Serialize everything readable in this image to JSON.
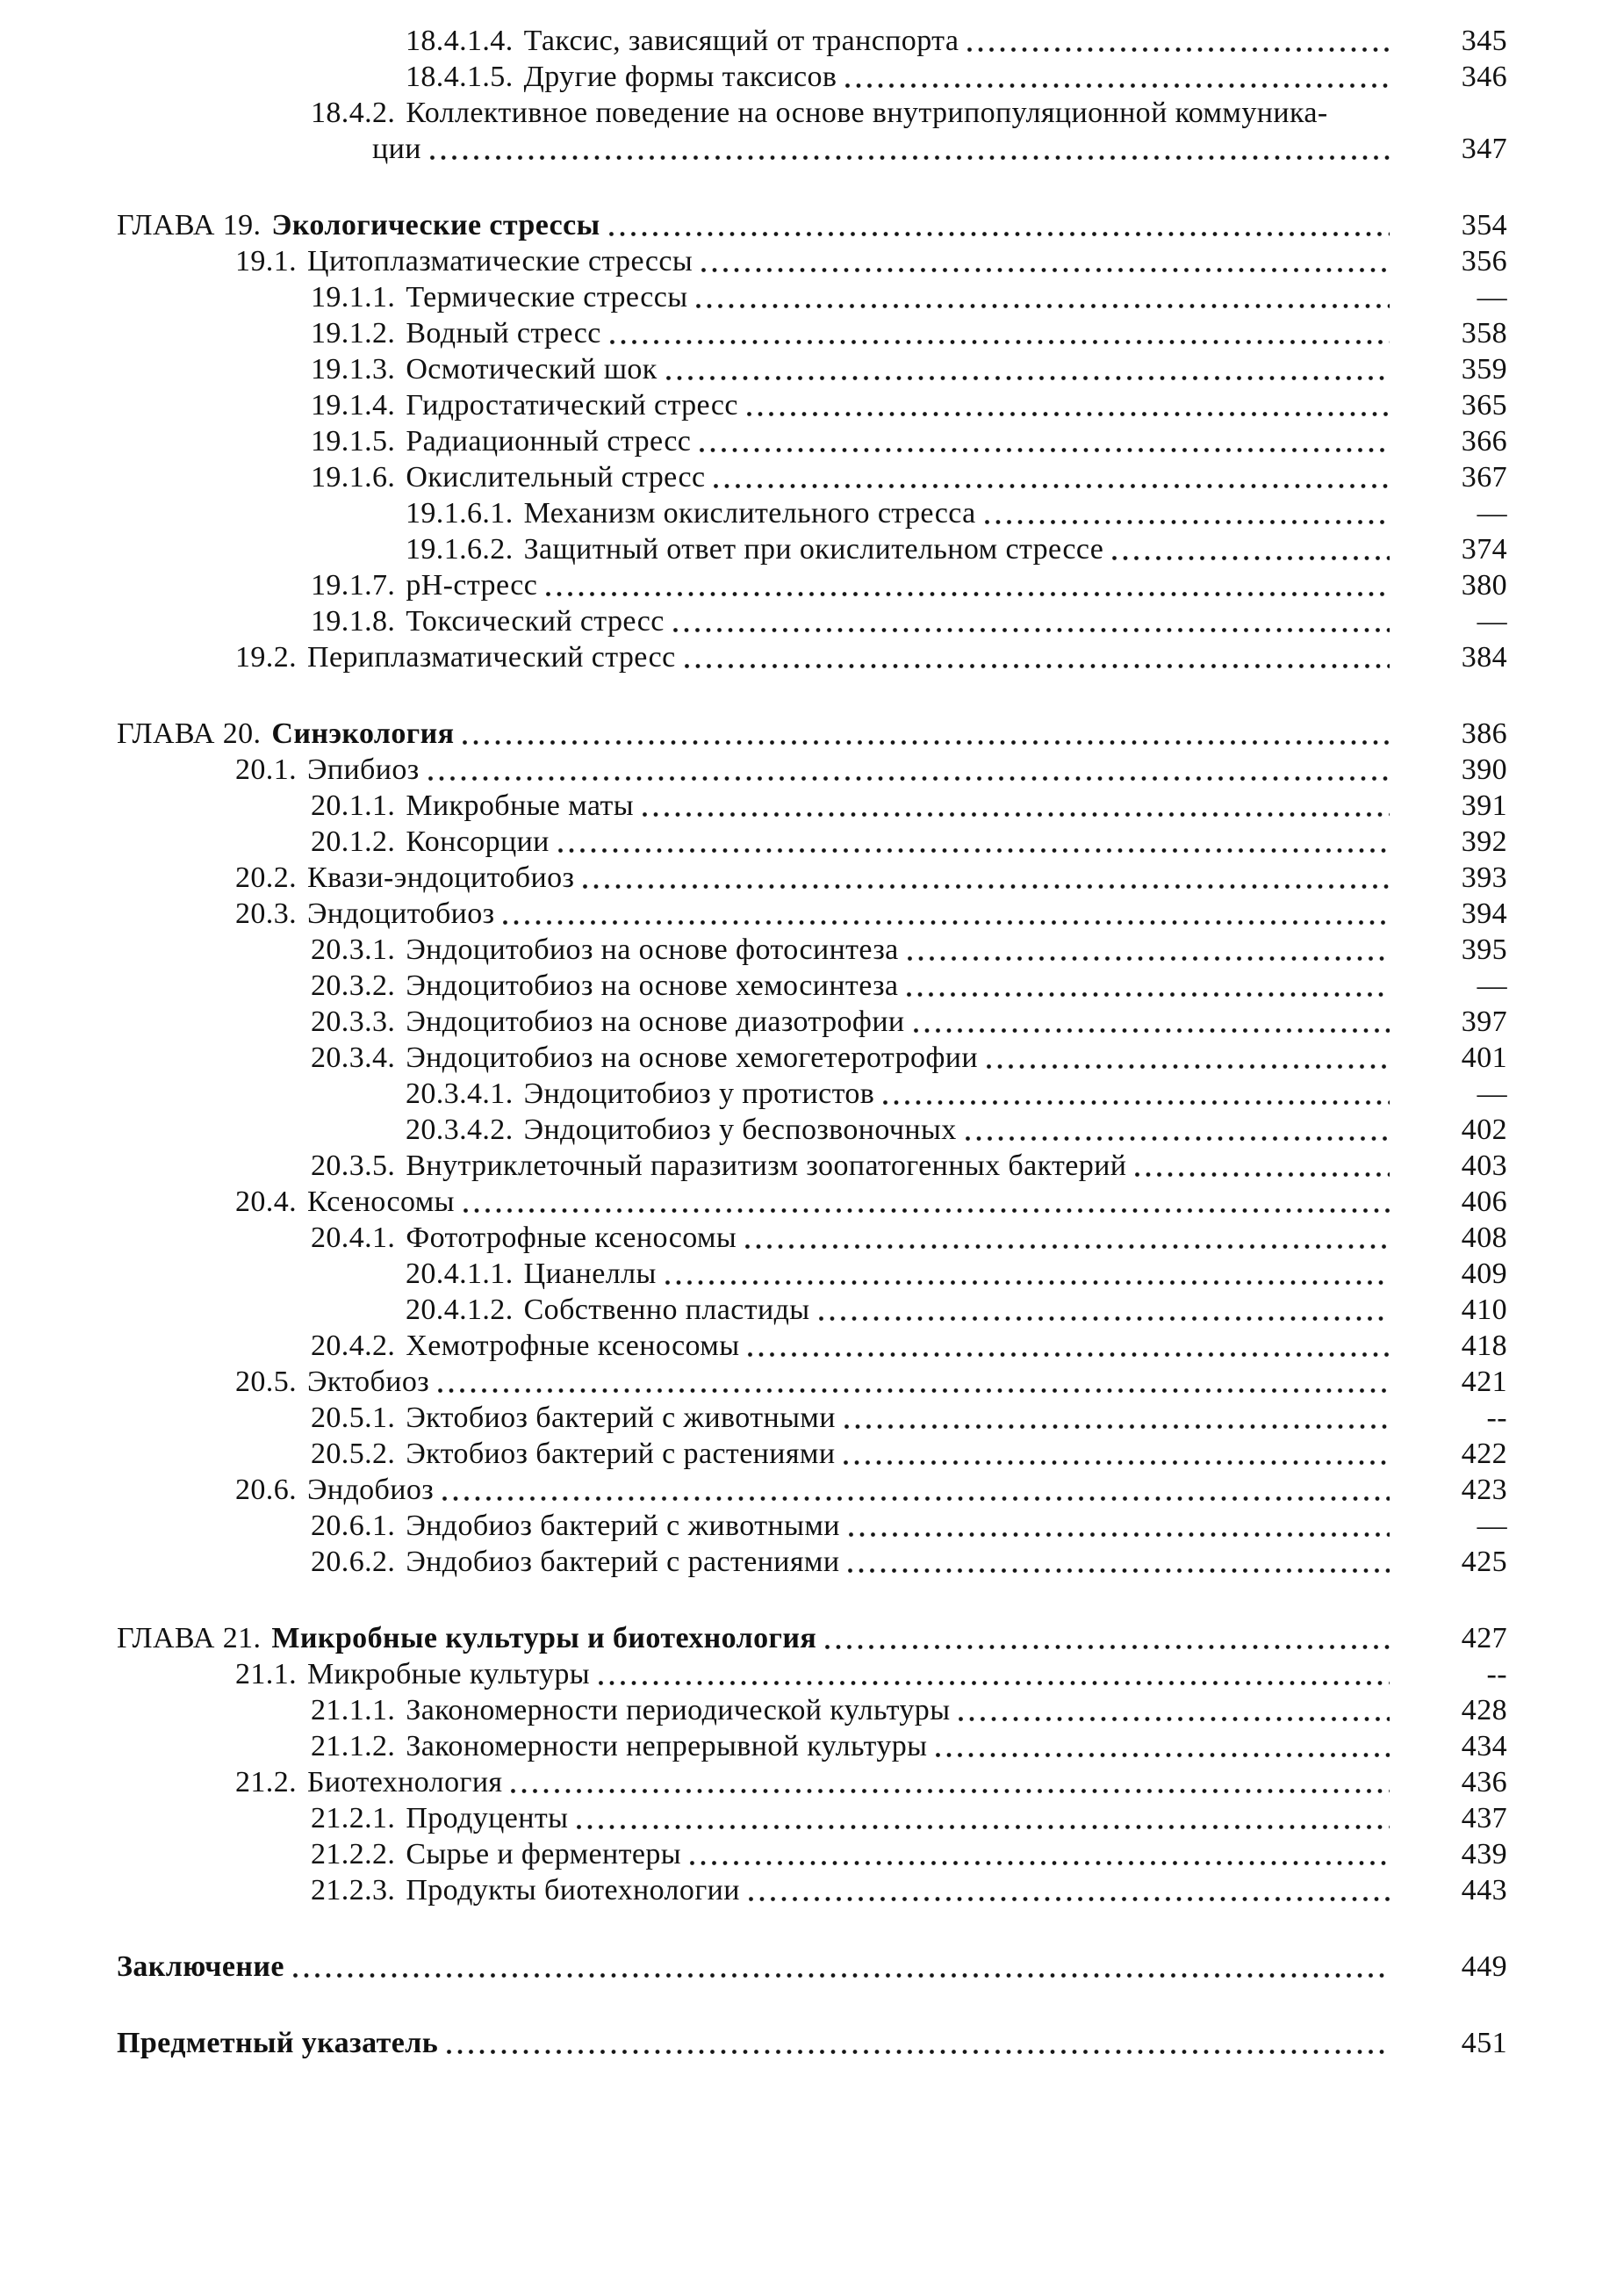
{
  "page": {
    "background": "#ffffff",
    "text_color": "#111111"
  },
  "toc": {
    "entries": [
      {
        "num": "18.4.1.4.",
        "text": "Таксис, зависящий от транспорта",
        "page": "345",
        "level": 3,
        "bold": false,
        "dots": true,
        "gap": false
      },
      {
        "num": "18.4.1.5.",
        "text": "Другие формы таксисов",
        "page": "346",
        "level": 3,
        "bold": false,
        "dots": true,
        "gap": false
      },
      {
        "num": "18.4.2.",
        "text": "Коллективное поведение на основе внутрипопуляционной коммуника-",
        "page": "",
        "level": 2,
        "bold": false,
        "dots": false,
        "gap": false
      },
      {
        "num": "",
        "text": "ции",
        "page": "347",
        "level": "cont",
        "bold": false,
        "dots": true,
        "gap": false
      },
      {
        "num": "ГЛАВА 19.",
        "text": "Экологические стрессы",
        "page": "354",
        "level": 0,
        "bold": true,
        "dots": true,
        "gap": true
      },
      {
        "num": "19.1.",
        "text": "Цитоплазматические стрессы",
        "page": "356",
        "level": 1,
        "bold": false,
        "dots": true,
        "gap": false
      },
      {
        "num": "19.1.1.",
        "text": "Термические стрессы",
        "page": "—",
        "level": 2,
        "bold": false,
        "dots": true,
        "gap": false
      },
      {
        "num": "19.1.2.",
        "text": "Водный стресс",
        "page": "358",
        "level": 2,
        "bold": false,
        "dots": true,
        "gap": false
      },
      {
        "num": "19.1.3.",
        "text": "Осмотический шок",
        "page": "359",
        "level": 2,
        "bold": false,
        "dots": true,
        "gap": false
      },
      {
        "num": "19.1.4.",
        "text": "Гидростатический стресс",
        "page": "365",
        "level": 2,
        "bold": false,
        "dots": true,
        "gap": false
      },
      {
        "num": "19.1.5.",
        "text": "Радиационный стресс",
        "page": "366",
        "level": 2,
        "bold": false,
        "dots": true,
        "gap": false
      },
      {
        "num": "19.1.6.",
        "text": "Окислительный стресс",
        "page": "367",
        "level": 2,
        "bold": false,
        "dots": true,
        "gap": false
      },
      {
        "num": "19.1.6.1.",
        "text": "Механизм окислительного стресса",
        "page": "—",
        "level": 3,
        "bold": false,
        "dots": true,
        "gap": false
      },
      {
        "num": "19.1.6.2.",
        "text": "Защитный ответ при окислительном стрессе",
        "page": "374",
        "level": 3,
        "bold": false,
        "dots": true,
        "gap": false
      },
      {
        "num": "19.1.7.",
        "text": "pH-стресс",
        "page": "380",
        "level": 2,
        "bold": false,
        "dots": true,
        "gap": false
      },
      {
        "num": "19.1.8.",
        "text": "Токсический стресс",
        "page": "—",
        "level": 2,
        "bold": false,
        "dots": true,
        "gap": false
      },
      {
        "num": "19.2.",
        "text": "Периплазматический стресс",
        "page": "384",
        "level": 1,
        "bold": false,
        "dots": true,
        "gap": false
      },
      {
        "num": "ГЛАВА 20.",
        "text": "Синэкология",
        "page": "386",
        "level": 0,
        "bold": true,
        "dots": true,
        "gap": true
      },
      {
        "num": "20.1.",
        "text": "Эпибиоз",
        "page": "390",
        "level": 1,
        "bold": false,
        "dots": true,
        "gap": false
      },
      {
        "num": "20.1.1.",
        "text": "Микробные маты",
        "page": "391",
        "level": 2,
        "bold": false,
        "dots": true,
        "gap": false
      },
      {
        "num": "20.1.2.",
        "text": "Консорции",
        "page": "392",
        "level": 2,
        "bold": false,
        "dots": true,
        "gap": false
      },
      {
        "num": "20.2.",
        "text": "Квази-эндоцитобиоз",
        "page": "393",
        "level": 1,
        "bold": false,
        "dots": true,
        "gap": false
      },
      {
        "num": "20.3.",
        "text": "Эндоцитобиоз",
        "page": "394",
        "level": 1,
        "bold": false,
        "dots": true,
        "gap": false
      },
      {
        "num": "20.3.1.",
        "text": "Эндоцитобиоз на основе фотосинтеза",
        "page": "395",
        "level": 2,
        "bold": false,
        "dots": true,
        "gap": false
      },
      {
        "num": "20.3.2.",
        "text": "Эндоцитобиоз на основе хемосинтеза",
        "page": "—",
        "level": 2,
        "bold": false,
        "dots": true,
        "gap": false
      },
      {
        "num": "20.3.3.",
        "text": "Эндоцитобиоз на основе диазотрофии",
        "page": "397",
        "level": 2,
        "bold": false,
        "dots": true,
        "gap": false
      },
      {
        "num": "20.3.4.",
        "text": "Эндоцитобиоз на основе хемогетеротрофии",
        "page": "401",
        "level": 2,
        "bold": false,
        "dots": true,
        "gap": false
      },
      {
        "num": "20.3.4.1.",
        "text": "Эндоцитобиоз у протистов",
        "page": "—",
        "level": 3,
        "bold": false,
        "dots": true,
        "gap": false
      },
      {
        "num": "20.3.4.2.",
        "text": "Эндоцитобиоз у беспозвоночных",
        "page": "402",
        "level": 3,
        "bold": false,
        "dots": true,
        "gap": false
      },
      {
        "num": "20.3.5.",
        "text": "Внутриклеточный паразитизм зоопатогенных бактерий",
        "page": "403",
        "level": 2,
        "bold": false,
        "dots": true,
        "gap": false
      },
      {
        "num": "20.4.",
        "text": "Ксеносомы",
        "page": "406",
        "level": 1,
        "bold": false,
        "dots": true,
        "gap": false
      },
      {
        "num": "20.4.1.",
        "text": "Фототрофные ксеносомы",
        "page": "408",
        "level": 2,
        "bold": false,
        "dots": true,
        "gap": false
      },
      {
        "num": "20.4.1.1.",
        "text": "Цианеллы",
        "page": "409",
        "level": 3,
        "bold": false,
        "dots": true,
        "gap": false
      },
      {
        "num": "20.4.1.2.",
        "text": "Собственно пластиды",
        "page": "410",
        "level": 3,
        "bold": false,
        "dots": true,
        "gap": false
      },
      {
        "num": "20.4.2.",
        "text": "Хемотрофные ксеносомы",
        "page": "418",
        "level": 2,
        "bold": false,
        "dots": true,
        "gap": false
      },
      {
        "num": "20.5.",
        "text": "Эктобиоз",
        "page": "421",
        "level": 1,
        "bold": false,
        "dots": true,
        "gap": false
      },
      {
        "num": "20.5.1.",
        "text": "Эктобиоз бактерий с животными",
        "page": "--",
        "level": 2,
        "bold": false,
        "dots": true,
        "gap": false
      },
      {
        "num": "20.5.2.",
        "text": "Эктобиоз бактерий с растениями",
        "page": "422",
        "level": 2,
        "bold": false,
        "dots": true,
        "gap": false
      },
      {
        "num": "20.6.",
        "text": "Эндобиоз",
        "page": "423",
        "level": 1,
        "bold": false,
        "dots": true,
        "gap": false
      },
      {
        "num": "20.6.1.",
        "text": "Эндобиоз бактерий с животными",
        "page": "—",
        "level": 2,
        "bold": false,
        "dots": true,
        "gap": false
      },
      {
        "num": "20.6.2.",
        "text": "Эндобиоз бактерий с растениями",
        "page": "425",
        "level": 2,
        "bold": false,
        "dots": true,
        "gap": false
      },
      {
        "num": "ГЛАВА 21.",
        "text": "Микробные культуры и биотехнология",
        "page": "427",
        "level": 0,
        "bold": true,
        "dots": true,
        "gap": true
      },
      {
        "num": "21.1.",
        "text": "Микробные культуры",
        "page": "--",
        "level": 1,
        "bold": false,
        "dots": true,
        "gap": false
      },
      {
        "num": "21.1.1.",
        "text": "Закономерности периодической культуры",
        "page": "428",
        "level": 2,
        "bold": false,
        "dots": true,
        "gap": false
      },
      {
        "num": "21.1.2.",
        "text": "Закономерности непрерывной культуры",
        "page": "434",
        "level": 2,
        "bold": false,
        "dots": true,
        "gap": false
      },
      {
        "num": "21.2.",
        "text": "Биотехнология",
        "page": "436",
        "level": 1,
        "bold": false,
        "dots": true,
        "gap": false
      },
      {
        "num": "21.2.1.",
        "text": "Продуценты",
        "page": "437",
        "level": 2,
        "bold": false,
        "dots": true,
        "gap": false
      },
      {
        "num": "21.2.2.",
        "text": "Сырье и ферментеры",
        "page": "439",
        "level": 2,
        "bold": false,
        "dots": true,
        "gap": false
      },
      {
        "num": "21.2.3.",
        "text": "Продукты биотехнологии",
        "page": "443",
        "level": 2,
        "bold": false,
        "dots": true,
        "gap": false
      },
      {
        "num": "",
        "text": "Заключение",
        "page": "449",
        "level": 0,
        "bold": true,
        "dots": true,
        "gap": true
      },
      {
        "num": "",
        "text": "Предметный указатель",
        "page": "451",
        "level": 0,
        "bold": true,
        "dots": true,
        "gap": true
      }
    ]
  }
}
